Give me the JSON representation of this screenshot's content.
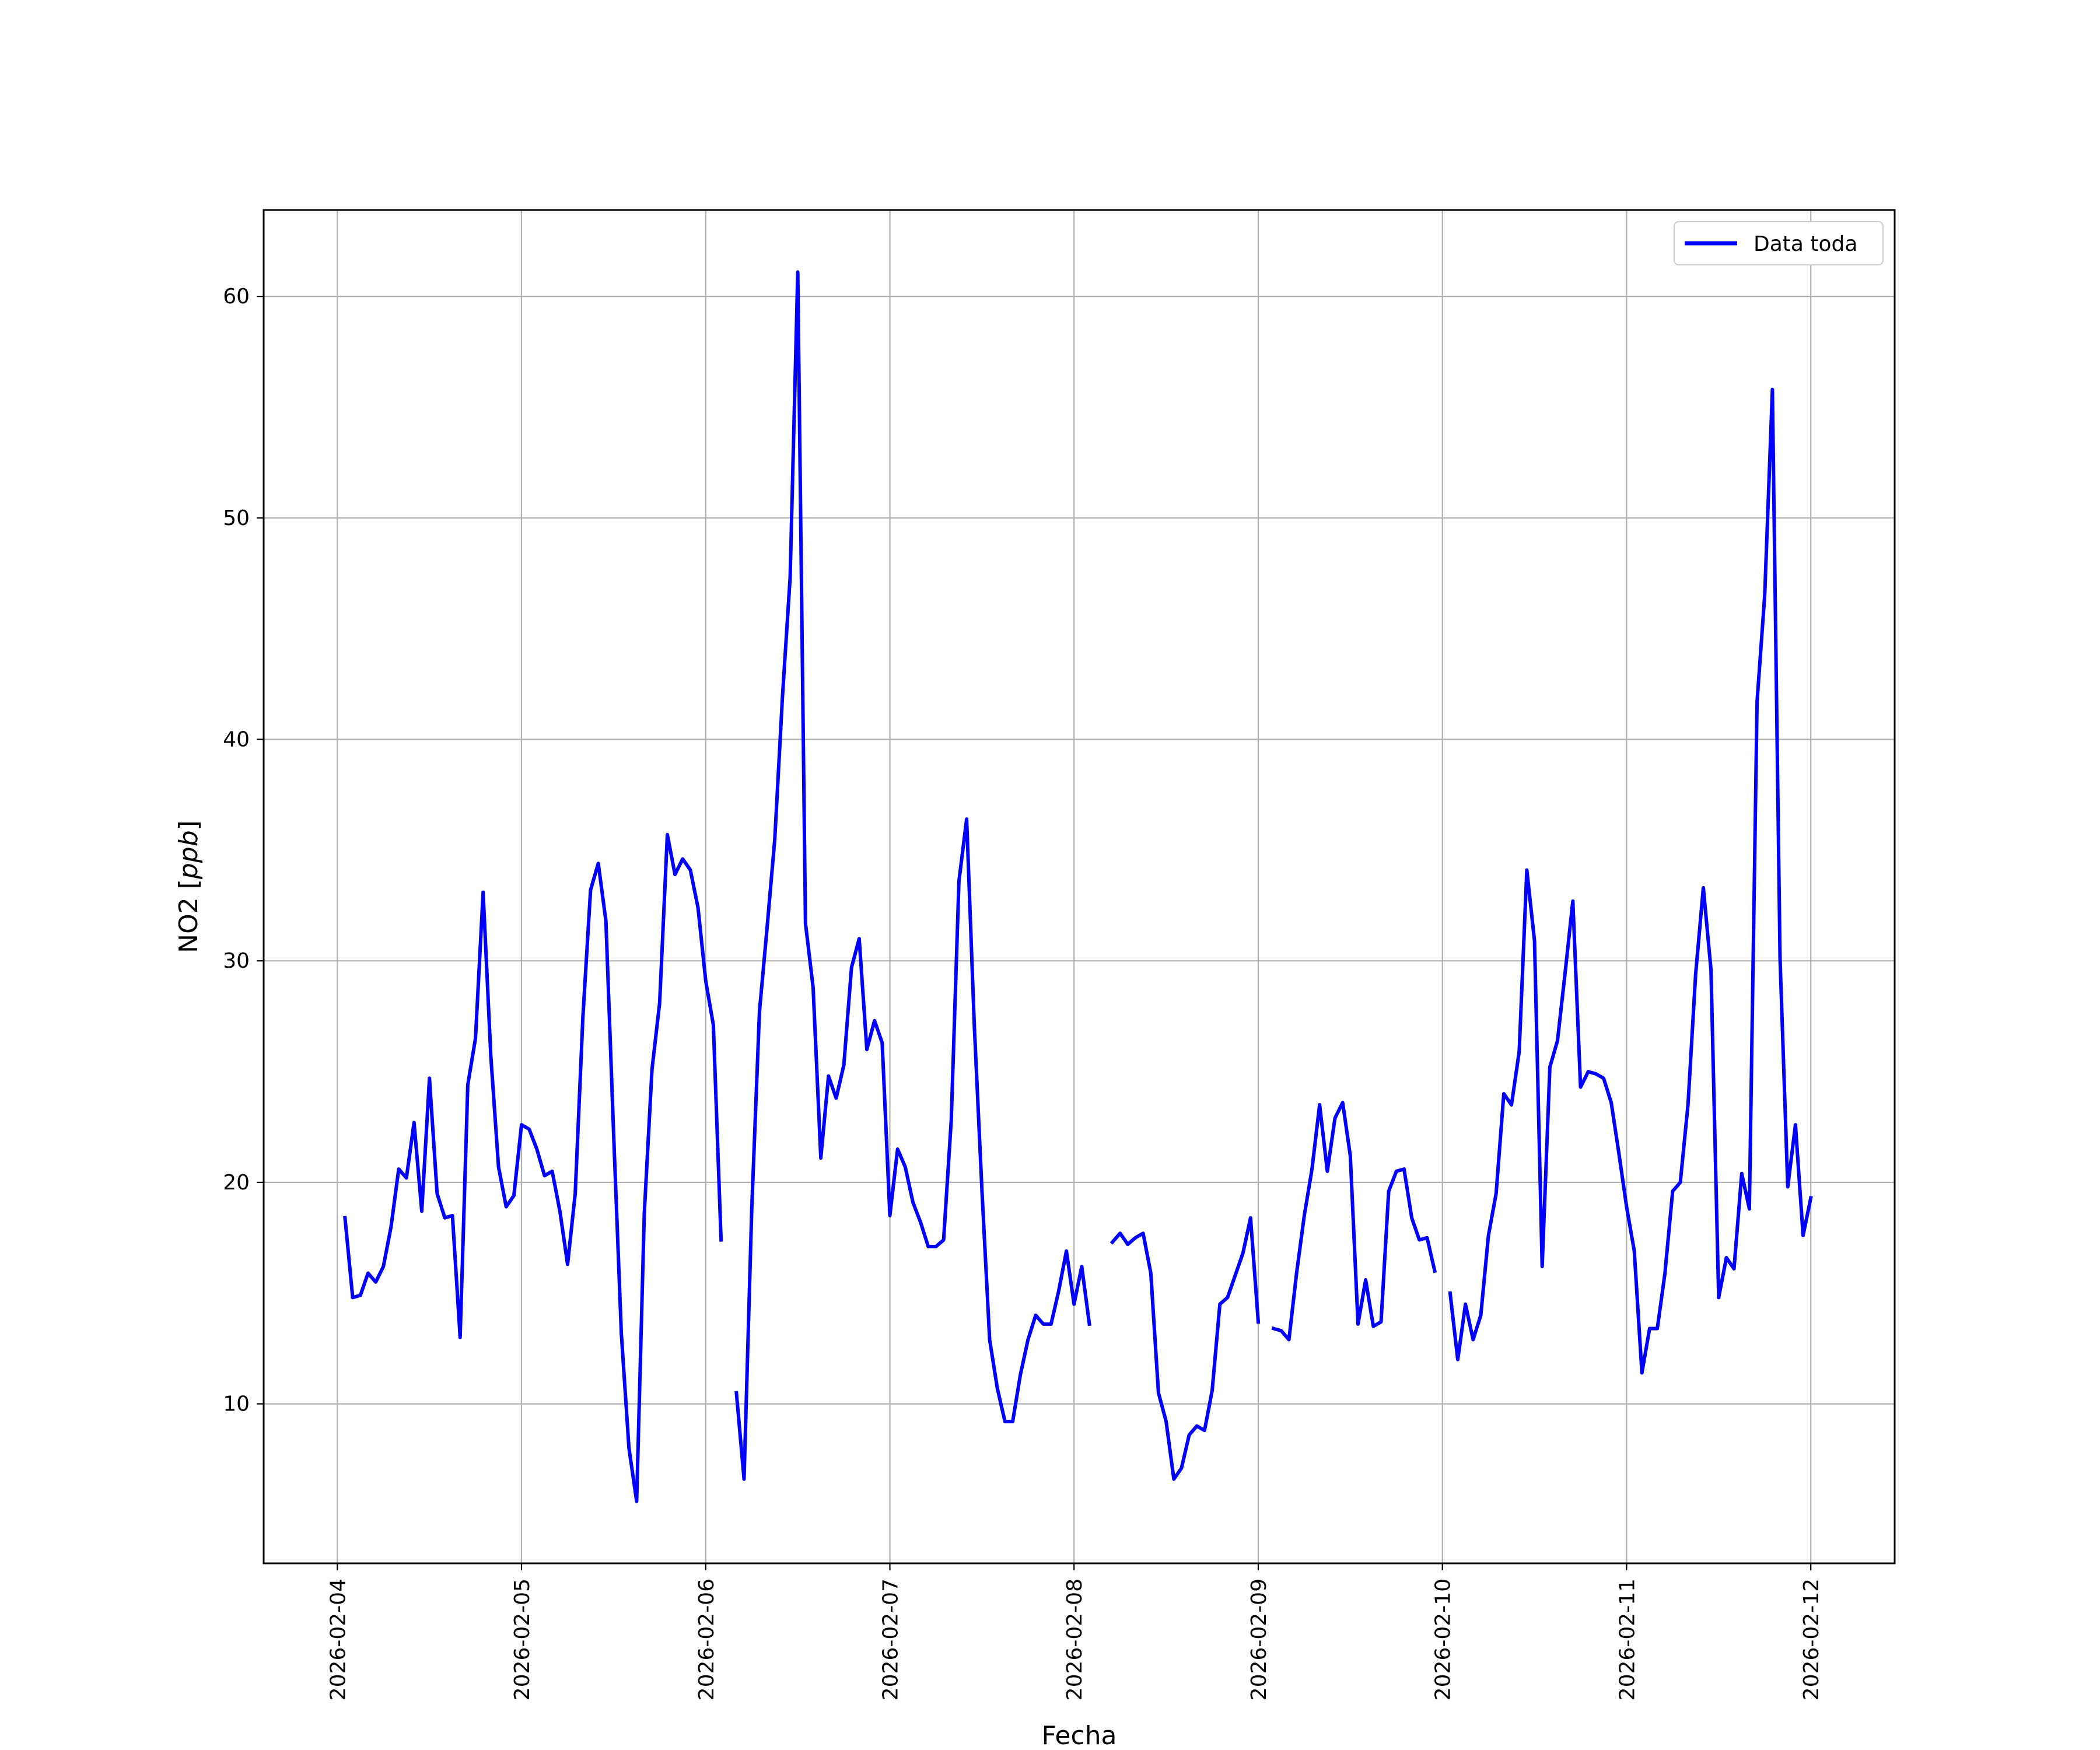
{
  "chart_data": {
    "type": "line",
    "title": "",
    "xlabel": "Fecha",
    "ylabel": "NO2 [ppb]",
    "ylabel_parts": {
      "plain": "NO2 [",
      "italic": "ppb",
      "end": "]"
    },
    "x_ticks": [
      "2026-02-04",
      "2026-02-05",
      "2026-02-06",
      "2026-02-07",
      "2026-02-08",
      "2026-02-09",
      "2026-02-10",
      "2026-02-11",
      "2026-02-12"
    ],
    "y_ticks": [
      10,
      20,
      30,
      40,
      50,
      60
    ],
    "xlim": [
      "2026-02-03 14:24",
      "2026-02-12 10:56"
    ],
    "ylim": [
      2.8,
      63.9
    ],
    "grid": true,
    "legend_position": "top-right",
    "series": [
      {
        "name": "Data toda",
        "color": "#0000ff",
        "points": [
          [
            "2026-02-04 01:00",
            18.4
          ],
          [
            "2026-02-04 02:00",
            14.8
          ],
          [
            "2026-02-04 03:00",
            14.9
          ],
          [
            "2026-02-04 04:00",
            15.9
          ],
          [
            "2026-02-04 05:00",
            15.5
          ],
          [
            "2026-02-04 06:00",
            16.2
          ],
          [
            "2026-02-04 07:00",
            18.0
          ],
          [
            "2026-02-04 08:00",
            20.6
          ],
          [
            "2026-02-04 09:00",
            20.2
          ],
          [
            "2026-02-04 10:00",
            22.7
          ],
          [
            "2026-02-04 11:00",
            18.7
          ],
          [
            "2026-02-04 12:00",
            24.7
          ],
          [
            "2026-02-04 13:00",
            19.5
          ],
          [
            "2026-02-04 14:00",
            18.4
          ],
          [
            "2026-02-04 15:00",
            18.5
          ],
          [
            "2026-02-04 16:00",
            13.0
          ],
          [
            "2026-02-04 17:00",
            24.4
          ],
          [
            "2026-02-04 18:00",
            26.5
          ],
          [
            "2026-02-04 19:00",
            33.1
          ],
          [
            "2026-02-04 20:00",
            25.7
          ],
          [
            "2026-02-04 21:00",
            20.7
          ],
          [
            "2026-02-04 22:00",
            18.9
          ],
          [
            "2026-02-04 23:00",
            19.4
          ],
          [
            "2026-02-05 00:00",
            22.6
          ],
          [
            "2026-02-05 01:00",
            22.4
          ],
          [
            "2026-02-05 02:00",
            21.5
          ],
          [
            "2026-02-05 03:00",
            20.3
          ],
          [
            "2026-02-05 04:00",
            20.5
          ],
          [
            "2026-02-05 05:00",
            18.7
          ],
          [
            "2026-02-05 06:00",
            16.3
          ],
          [
            "2026-02-05 07:00",
            19.5
          ],
          [
            "2026-02-05 08:00",
            27.5
          ],
          [
            "2026-02-05 09:00",
            33.2
          ],
          [
            "2026-02-05 10:00",
            34.4
          ],
          [
            "2026-02-05 11:00",
            31.8
          ],
          [
            "2026-02-05 12:00",
            22.2
          ],
          [
            "2026-02-05 13:00",
            13.2
          ],
          [
            "2026-02-05 14:00",
            8.0
          ],
          [
            "2026-02-05 15:00",
            5.6
          ],
          [
            "2026-02-05 16:00",
            18.6
          ],
          [
            "2026-02-05 17:00",
            25.1
          ],
          [
            "2026-02-05 18:00",
            28.1
          ],
          [
            "2026-02-05 19:00",
            35.7
          ],
          [
            "2026-02-05 20:00",
            33.9
          ],
          [
            "2026-02-05 21:00",
            34.6
          ],
          [
            "2026-02-05 22:00",
            34.1
          ],
          [
            "2026-02-05 23:00",
            32.4
          ],
          [
            "2026-02-06 00:00",
            29.1
          ],
          [
            "2026-02-06 01:00",
            27.1
          ],
          [
            "2026-02-06 02:00",
            17.4
          ],
          null,
          [
            "2026-02-06 04:00",
            10.5
          ],
          [
            "2026-02-06 05:00",
            6.6
          ],
          [
            "2026-02-06 06:00",
            18.8
          ],
          [
            "2026-02-06 07:00",
            27.7
          ],
          [
            "2026-02-06 08:00",
            31.5
          ],
          [
            "2026-02-06 09:00",
            35.5
          ],
          [
            "2026-02-06 10:00",
            41.9
          ],
          [
            "2026-02-06 11:00",
            47.3
          ],
          [
            "2026-02-06 12:00",
            61.1
          ],
          [
            "2026-02-06 13:00",
            31.7
          ],
          [
            "2026-02-06 14:00",
            28.8
          ],
          [
            "2026-02-06 15:00",
            21.1
          ],
          [
            "2026-02-06 16:00",
            24.8
          ],
          [
            "2026-02-06 17:00",
            23.8
          ],
          [
            "2026-02-06 18:00",
            25.3
          ],
          [
            "2026-02-06 19:00",
            29.7
          ],
          [
            "2026-02-06 20:00",
            31.0
          ],
          [
            "2026-02-06 21:00",
            26.0
          ],
          [
            "2026-02-06 22:00",
            27.3
          ],
          [
            "2026-02-06 23:00",
            26.3
          ],
          [
            "2026-02-07 00:00",
            18.5
          ],
          [
            "2026-02-07 01:00",
            21.5
          ],
          [
            "2026-02-07 02:00",
            20.7
          ],
          [
            "2026-02-07 03:00",
            19.1
          ],
          [
            "2026-02-07 04:00",
            18.2
          ],
          [
            "2026-02-07 05:00",
            17.1
          ],
          [
            "2026-02-07 06:00",
            17.1
          ],
          [
            "2026-02-07 07:00",
            17.4
          ],
          [
            "2026-02-07 08:00",
            22.8
          ],
          [
            "2026-02-07 09:00",
            33.6
          ],
          [
            "2026-02-07 10:00",
            36.4
          ],
          [
            "2026-02-07 11:00",
            27.1
          ],
          [
            "2026-02-07 12:00",
            19.6
          ],
          [
            "2026-02-07 13:00",
            12.9
          ],
          [
            "2026-02-07 14:00",
            10.7
          ],
          [
            "2026-02-07 15:00",
            9.2
          ],
          [
            "2026-02-07 16:00",
            9.2
          ],
          [
            "2026-02-07 17:00",
            11.3
          ],
          [
            "2026-02-07 18:00",
            12.9
          ],
          [
            "2026-02-07 19:00",
            14.0
          ],
          [
            "2026-02-07 20:00",
            13.6
          ],
          [
            "2026-02-07 21:00",
            13.6
          ],
          [
            "2026-02-07 22:00",
            15.1
          ],
          [
            "2026-02-07 23:00",
            16.9
          ],
          [
            "2026-02-08 00:00",
            14.5
          ],
          [
            "2026-02-08 01:00",
            16.2
          ],
          [
            "2026-02-08 02:00",
            13.6
          ],
          null,
          [
            "2026-02-08 05:00",
            17.3
          ],
          [
            "2026-02-08 06:00",
            17.7
          ],
          [
            "2026-02-08 07:00",
            17.2
          ],
          [
            "2026-02-08 08:00",
            17.5
          ],
          [
            "2026-02-08 09:00",
            17.7
          ],
          [
            "2026-02-08 10:00",
            15.9
          ],
          [
            "2026-02-08 11:00",
            10.5
          ],
          [
            "2026-02-08 12:00",
            9.2
          ],
          [
            "2026-02-08 13:00",
            6.6
          ],
          [
            "2026-02-08 14:00",
            7.1
          ],
          [
            "2026-02-08 15:00",
            8.6
          ],
          [
            "2026-02-08 16:00",
            9.0
          ],
          [
            "2026-02-08 17:00",
            8.8
          ],
          [
            "2026-02-08 18:00",
            10.6
          ],
          [
            "2026-02-08 19:00",
            14.5
          ],
          [
            "2026-02-08 20:00",
            14.8
          ],
          [
            "2026-02-08 21:00",
            15.8
          ],
          [
            "2026-02-08 22:00",
            16.8
          ],
          [
            "2026-02-08 23:00",
            18.4
          ],
          [
            "2026-02-09 00:00",
            13.7
          ],
          null,
          [
            "2026-02-09 02:00",
            13.4
          ],
          [
            "2026-02-09 03:00",
            13.3
          ],
          [
            "2026-02-09 04:00",
            12.9
          ],
          [
            "2026-02-09 05:00",
            15.9
          ],
          [
            "2026-02-09 06:00",
            18.5
          ],
          [
            "2026-02-09 07:00",
            20.6
          ],
          [
            "2026-02-09 08:00",
            23.5
          ],
          [
            "2026-02-09 09:00",
            20.5
          ],
          [
            "2026-02-09 10:00",
            22.9
          ],
          [
            "2026-02-09 11:00",
            23.6
          ],
          [
            "2026-02-09 12:00",
            21.2
          ],
          [
            "2026-02-09 13:00",
            13.6
          ],
          [
            "2026-02-09 14:00",
            15.6
          ],
          [
            "2026-02-09 15:00",
            13.5
          ],
          [
            "2026-02-09 16:00",
            13.7
          ],
          [
            "2026-02-09 17:00",
            19.6
          ],
          [
            "2026-02-09 18:00",
            20.5
          ],
          [
            "2026-02-09 19:00",
            20.6
          ],
          [
            "2026-02-09 20:00",
            18.4
          ],
          [
            "2026-02-09 21:00",
            17.4
          ],
          [
            "2026-02-09 22:00",
            17.5
          ],
          [
            "2026-02-09 23:00",
            16.0
          ],
          null,
          [
            "2026-02-10 01:00",
            15.0
          ],
          [
            "2026-02-10 02:00",
            12.0
          ],
          [
            "2026-02-10 03:00",
            14.5
          ],
          [
            "2026-02-10 04:00",
            12.9
          ],
          [
            "2026-02-10 05:00",
            14.0
          ],
          [
            "2026-02-10 06:00",
            17.6
          ],
          [
            "2026-02-10 07:00",
            19.5
          ],
          [
            "2026-02-10 08:00",
            24.0
          ],
          [
            "2026-02-10 09:00",
            23.5
          ],
          [
            "2026-02-10 10:00",
            25.9
          ],
          [
            "2026-02-10 11:00",
            34.1
          ],
          [
            "2026-02-10 12:00",
            30.9
          ],
          [
            "2026-02-10 13:00",
            16.2
          ],
          [
            "2026-02-10 14:00",
            25.2
          ],
          [
            "2026-02-10 15:00",
            26.4
          ],
          [
            "2026-02-10 16:00",
            29.5
          ],
          [
            "2026-02-10 17:00",
            32.7
          ],
          [
            "2026-02-10 18:00",
            24.3
          ],
          [
            "2026-02-10 19:00",
            25.0
          ],
          [
            "2026-02-10 20:00",
            24.9
          ],
          [
            "2026-02-10 21:00",
            24.7
          ],
          [
            "2026-02-10 22:00",
            23.6
          ],
          [
            "2026-02-10 23:00",
            21.3
          ],
          [
            "2026-02-11 00:00",
            18.9
          ],
          [
            "2026-02-11 01:00",
            16.9
          ],
          [
            "2026-02-11 02:00",
            11.4
          ],
          [
            "2026-02-11 03:00",
            13.4
          ],
          [
            "2026-02-11 04:00",
            13.4
          ],
          [
            "2026-02-11 05:00",
            15.9
          ],
          [
            "2026-02-11 06:00",
            19.6
          ],
          [
            "2026-02-11 07:00",
            20.0
          ],
          [
            "2026-02-11 08:00",
            23.5
          ],
          [
            "2026-02-11 09:00",
            29.4
          ],
          [
            "2026-02-11 10:00",
            33.3
          ],
          [
            "2026-02-11 11:00",
            29.6
          ],
          [
            "2026-02-11 12:00",
            14.8
          ],
          [
            "2026-02-11 13:00",
            16.6
          ],
          [
            "2026-02-11 14:00",
            16.1
          ],
          [
            "2026-02-11 15:00",
            20.4
          ],
          [
            "2026-02-11 16:00",
            18.8
          ],
          [
            "2026-02-11 17:00",
            41.7
          ],
          [
            "2026-02-11 18:00",
            46.5
          ],
          [
            "2026-02-11 19:00",
            55.8
          ],
          [
            "2026-02-11 20:00",
            30.1
          ],
          [
            "2026-02-11 21:00",
            19.8
          ],
          [
            "2026-02-11 22:00",
            22.6
          ],
          [
            "2026-02-11 23:00",
            17.6
          ],
          [
            "2026-02-12 00:00",
            19.3
          ]
        ]
      }
    ]
  }
}
